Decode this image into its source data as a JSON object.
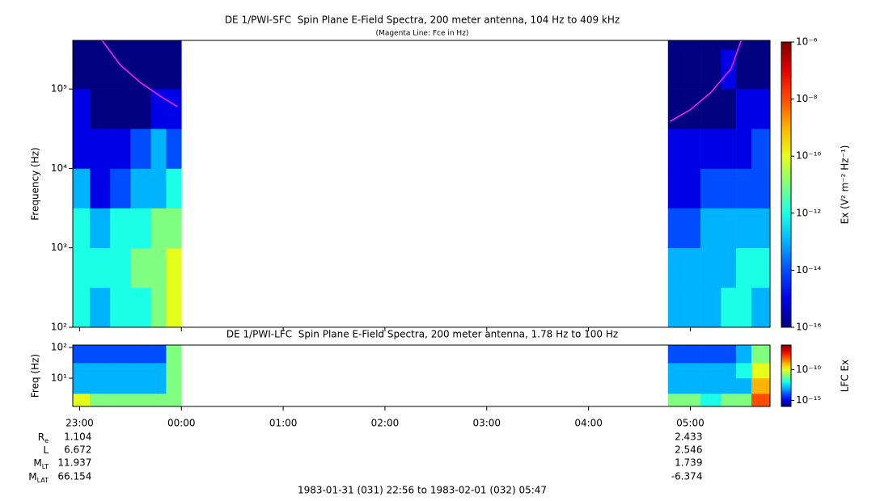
{
  "chart_data": [
    {
      "type": "heatmap",
      "title": "DE 1/PWI-SFC  Spin Plane E-Field Spectra, 200 meter antenna, 104 Hz to 409 kHz",
      "subtitle": "(Magenta Line: Fce in Hz)",
      "ylabel": "Frequency (Hz)",
      "log_y": true,
      "ylim": [
        100,
        409000
      ],
      "yticks": [
        {
          "value": 100,
          "label": "10²"
        },
        {
          "value": 1000,
          "label": "10³"
        },
        {
          "value": 10000,
          "label": "10⁴"
        },
        {
          "value": 100000,
          "label": "10⁵"
        }
      ],
      "x": [
        22.933,
        23.1,
        23.3,
        23.5,
        23.7,
        23.85,
        24.0,
        28.78,
        28.95,
        29.1,
        29.3,
        29.45,
        29.6,
        29.783
      ],
      "y": [
        100,
        316,
        1000,
        3160,
        10000,
        31600,
        100000,
        316000,
        409000
      ],
      "z": [
        [
          1e-12,
          1e-13,
          1e-12,
          1e-12,
          1e-11,
          1e-10,
          null,
          1e-13,
          1e-13,
          1e-13,
          1e-12,
          1e-12,
          1e-13
        ],
        [
          1e-12,
          1e-12,
          1e-12,
          1e-11,
          1e-11,
          1e-10,
          null,
          1e-13,
          1e-13,
          1e-13,
          1e-13,
          1e-12,
          1e-12
        ],
        [
          1e-12,
          1e-13,
          1e-12,
          1e-12,
          1e-11,
          1e-11,
          null,
          1e-14,
          1e-14,
          1e-13,
          1e-13,
          1e-13,
          1e-13
        ],
        [
          1e-13,
          1e-15,
          1e-14,
          1e-13,
          1e-13,
          1e-12,
          null,
          1e-15,
          1e-15,
          1e-14,
          1e-14,
          1e-14,
          1e-14
        ],
        [
          1e-15,
          1e-15,
          1e-15,
          1e-14,
          1e-13,
          1e-14,
          null,
          1e-15,
          1e-15,
          1e-15,
          1e-15,
          1e-15,
          1e-14
        ],
        [
          1e-15,
          1e-16,
          1e-16,
          1e-16,
          1e-15,
          1e-15,
          null,
          1e-16,
          1e-16,
          1e-16,
          1e-16,
          1e-15,
          1e-15
        ],
        [
          1e-16,
          1e-16,
          1e-16,
          1e-16,
          1e-16,
          1e-16,
          null,
          1e-16,
          1e-16,
          1e-16,
          1e-15,
          1e-16,
          1e-16
        ],
        [
          1e-16,
          1e-16,
          1e-16,
          1e-16,
          1e-16,
          1e-16,
          null,
          1e-16,
          1e-16,
          1e-16,
          1e-16,
          1e-16,
          1e-16
        ]
      ],
      "fce": {
        "color": "#ff22ff",
        "x": [
          23.22,
          23.4,
          23.6,
          23.8,
          23.96,
          null,
          28.8,
          29.0,
          29.2,
          29.4,
          29.5
        ],
        "values": [
          409000,
          200000,
          120000,
          80000,
          60000,
          null,
          39000,
          55000,
          90000,
          180000,
          409000
        ]
      },
      "colorbar": {
        "label": "Ex (V² m⁻² Hz⁻¹)",
        "lim": [
          1e-16,
          1e-06
        ],
        "ticks": [
          {
            "value": 1e-16,
            "label": "10⁻¹⁶"
          },
          {
            "value": 1e-14,
            "label": "10⁻¹⁴"
          },
          {
            "value": 1e-12,
            "label": "10⁻¹²"
          },
          {
            "value": 1e-10,
            "label": "10⁻¹⁰"
          },
          {
            "value": 1e-08,
            "label": "10⁻⁸"
          },
          {
            "value": 1e-06,
            "label": "10⁻⁶"
          }
        ]
      }
    },
    {
      "type": "heatmap",
      "title": "DE 1/PWI-LFC  Spin Plane E-Field Spectra, 200 meter antenna, 1.78 Hz to 100 Hz",
      "ylabel": "Freq (Hz)",
      "log_y": true,
      "xlim": [
        22.933,
        29.783
      ],
      "xticks": [
        {
          "value": 23,
          "label": "23:00"
        },
        {
          "value": 24,
          "label": "00:00"
        },
        {
          "value": 25,
          "label": "01:00"
        },
        {
          "value": 26,
          "label": "02:00"
        },
        {
          "value": 27,
          "label": "03:00"
        },
        {
          "value": 28,
          "label": "04:00"
        },
        {
          "value": 29,
          "label": "05:00"
        }
      ],
      "ylim": [
        1.2,
        120
      ],
      "yticks": [
        {
          "value": 10,
          "label": "10¹"
        },
        {
          "value": 100,
          "label": "10²"
        }
      ],
      "x": [
        22.933,
        23.1,
        23.3,
        23.5,
        23.7,
        23.85,
        24.0,
        28.78,
        28.95,
        29.1,
        29.3,
        29.45,
        29.6,
        29.783
      ],
      "y": [
        1.2,
        3.16,
        10,
        31.6,
        120
      ],
      "z": [
        [
          1e-10,
          1e-11,
          1e-11,
          1e-11,
          1e-11,
          1e-11,
          null,
          1e-11,
          1e-11,
          1e-12,
          1e-11,
          1e-11,
          1e-08
        ],
        [
          1e-13,
          1e-13,
          1e-13,
          1e-13,
          1e-13,
          1e-11,
          null,
          1e-13,
          1e-13,
          1e-13,
          1e-13,
          1e-13,
          1e-09
        ],
        [
          1e-13,
          1e-13,
          1e-13,
          1e-13,
          1e-13,
          1e-11,
          null,
          1e-13,
          1e-13,
          1e-13,
          1e-13,
          1e-12,
          1e-10
        ],
        [
          1e-14,
          1e-14,
          1e-14,
          1e-14,
          1e-14,
          1e-11,
          null,
          1e-14,
          1e-14,
          1e-14,
          1e-14,
          1e-13,
          1e-11
        ]
      ],
      "colorbar": {
        "label": "LFC Ex",
        "lim": [
          1e-16,
          1e-06
        ],
        "ticks": [
          {
            "value": 1e-15,
            "label": "10⁻¹⁵"
          },
          {
            "value": 1e-10,
            "label": "10⁻¹⁰"
          }
        ]
      }
    }
  ],
  "ephemeris": {
    "rows": [
      {
        "main": "R",
        "sub": "e"
      },
      {
        "main": "L",
        "sub": ""
      },
      {
        "main": "M",
        "sub": "LT"
      },
      {
        "main": "M",
        "sub": "LAT"
      }
    ],
    "columns": [
      {
        "at": 23,
        "values": [
          1.104,
          6.672,
          11.937,
          66.154
        ]
      },
      {
        "at": 29,
        "values": [
          2.433,
          2.546,
          1.739,
          -6.374
        ]
      }
    ]
  },
  "time_range": "1983-01-31 (031) 22:56 to 1983-02-01 (032) 05:47"
}
